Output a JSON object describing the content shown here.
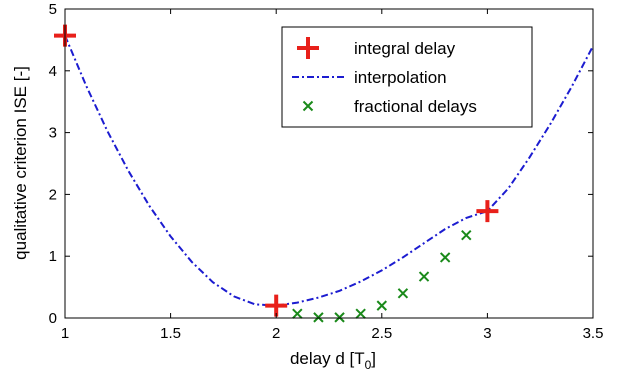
{
  "chart_data": {
    "type": "scatter",
    "xlabel": "delay d [T",
    "xlabel_sub": "0",
    "xlabel_end": "]",
    "ylabel": "qualitative criterion ISE [-]",
    "xlim": [
      1,
      3.5
    ],
    "ylim": [
      0,
      5
    ],
    "xticks": [
      1,
      1.5,
      2,
      2.5,
      3,
      3.5
    ],
    "xtick_labels": [
      "1",
      "1.5",
      "2",
      "2.5",
      "3",
      "3.5"
    ],
    "yticks": [
      0,
      1,
      2,
      3,
      4,
      5
    ],
    "ytick_labels": [
      "0",
      "1",
      "2",
      "3",
      "4",
      "5"
    ],
    "grid": false,
    "legend_position": "top-right",
    "series": [
      {
        "name": "integral delay",
        "marker": "plus",
        "color": "#e8201a",
        "x": [
          1,
          2,
          3
        ],
        "y": [
          4.57,
          0.2,
          1.73
        ]
      },
      {
        "name": "interpolation",
        "line": "dash-dot",
        "color": "#1c1cd0",
        "x": [
          1,
          1.1,
          1.2,
          1.3,
          1.4,
          1.5,
          1.6,
          1.7,
          1.8,
          1.9,
          2,
          2.1,
          2.2,
          2.3,
          2.4,
          2.5,
          2.6,
          2.7,
          2.8,
          2.9,
          3,
          3.1,
          3.2,
          3.3,
          3.4,
          3.5
        ],
        "y": [
          4.57,
          3.76,
          3.03,
          2.38,
          1.81,
          1.32,
          0.91,
          0.58,
          0.35,
          0.22,
          0.2,
          0.25,
          0.33,
          0.44,
          0.59,
          0.77,
          0.98,
          1.21,
          1.44,
          1.62,
          1.73,
          2.1,
          2.6,
          3.15,
          3.75,
          4.4
        ]
      },
      {
        "name": "fractional delays",
        "marker": "x",
        "color": "#1a8a1a",
        "x": [
          2.1,
          2.2,
          2.3,
          2.4,
          2.5,
          2.6,
          2.7,
          2.8,
          2.9
        ],
        "y": [
          0.07,
          0.01,
          0.01,
          0.07,
          0.2,
          0.4,
          0.67,
          0.98,
          1.34
        ]
      }
    ]
  }
}
